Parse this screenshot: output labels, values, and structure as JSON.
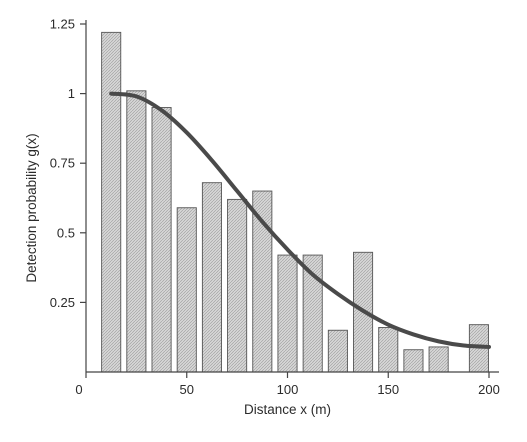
{
  "chart_data": {
    "type": "bar",
    "title": "",
    "xlabel": "Distance x (m)",
    "ylabel": "Detection probability g(x)",
    "xlim": [
      0,
      200
    ],
    "ylim": [
      0,
      1.25
    ],
    "x_ticks": [
      0,
      50,
      100,
      150,
      200
    ],
    "y_ticks": [
      0.25,
      0.5,
      0.75,
      1,
      1.25
    ],
    "x_tick_labels": [
      "0",
      "50",
      "100",
      "150",
      "200"
    ],
    "y_tick_labels": [
      "0.25",
      "0.5",
      "0.75",
      "1",
      "1.25"
    ],
    "grid": false,
    "bar_color": "#cfcfcf",
    "bar_edge_color": "#555555",
    "curve_color": "#4a4a4a",
    "bar_width": 9.5,
    "bars": [
      {
        "x": 12.5,
        "value": 1.22
      },
      {
        "x": 25,
        "value": 1.01
      },
      {
        "x": 37.5,
        "value": 0.95
      },
      {
        "x": 50,
        "value": 0.59
      },
      {
        "x": 62.5,
        "value": 0.68
      },
      {
        "x": 75,
        "value": 0.62
      },
      {
        "x": 87.5,
        "value": 0.65
      },
      {
        "x": 100,
        "value": 0.42
      },
      {
        "x": 112.5,
        "value": 0.42
      },
      {
        "x": 125,
        "value": 0.15
      },
      {
        "x": 137.5,
        "value": 0.43
      },
      {
        "x": 150,
        "value": 0.16
      },
      {
        "x": 162.5,
        "value": 0.08
      },
      {
        "x": 175,
        "value": 0.09
      },
      {
        "x": 195,
        "value": 0.17
      }
    ],
    "curve": {
      "x": [
        12.5,
        25,
        37.5,
        50,
        62.5,
        75,
        87.5,
        100,
        112.5,
        125,
        137.5,
        150,
        162.5,
        175,
        187.5,
        200
      ],
      "y": [
        1.0,
        0.99,
        0.94,
        0.86,
        0.76,
        0.65,
        0.54,
        0.44,
        0.35,
        0.28,
        0.22,
        0.17,
        0.135,
        0.11,
        0.095,
        0.09
      ]
    }
  }
}
